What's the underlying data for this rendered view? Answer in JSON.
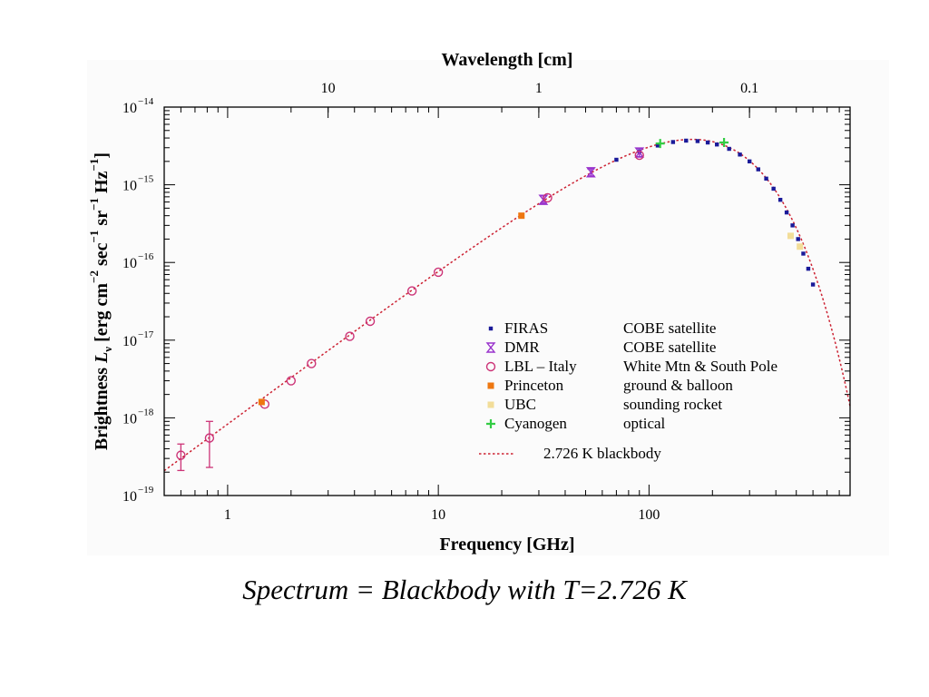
{
  "caption": "Spectrum = Blackbody with T=2.726 K",
  "chart_data": {
    "type": "scatter",
    "xscale": "log",
    "yscale": "log",
    "xlabel": "Frequency [GHz]",
    "x2label": "Wavelength [cm]",
    "ylabel_parts": [
      "Brightness ",
      "L",
      "ν",
      " [erg cm",
      "−2",
      " sec",
      "−1",
      " sr",
      "−1",
      " Hz",
      "−1",
      "]"
    ],
    "xlim": [
      0.5,
      900
    ],
    "ylim": [
      1e-19,
      1e-14
    ],
    "xticks": [
      {
        "value": 1,
        "label": "1"
      },
      {
        "value": 10,
        "label": "10"
      },
      {
        "value": 100,
        "label": "100"
      }
    ],
    "x2ticks": [
      {
        "value": 10,
        "label": "10"
      },
      {
        "value": 1,
        "label": "1"
      },
      {
        "value": 0.1,
        "label": "0.1"
      }
    ],
    "yticks": [
      {
        "value": 1e-14,
        "mantissa": "10",
        "exp": "−14"
      },
      {
        "value": 1e-15,
        "mantissa": "10",
        "exp": "−15"
      },
      {
        "value": 1e-16,
        "mantissa": "10",
        "exp": "−16"
      },
      {
        "value": 1e-17,
        "mantissa": "10",
        "exp": "−17"
      },
      {
        "value": 1e-18,
        "mantissa": "10",
        "exp": "−18"
      },
      {
        "value": 1e-19,
        "mantissa": "10",
        "exp": "−19"
      }
    ],
    "model": {
      "name": "2.726 K blackbody",
      "temperature_K": 2.726,
      "color": "#cc2233",
      "style": "dotted"
    },
    "legend_position": "center-right",
    "series": [
      {
        "name": "FIRAS",
        "source": "COBE satellite",
        "marker": "square-small",
        "color": "#1a1a99",
        "points": [
          {
            "x": 70,
            "y": 2.1e-15
          },
          {
            "x": 90,
            "y": 2.7e-15
          },
          {
            "x": 110,
            "y": 3.2e-15
          },
          {
            "x": 130,
            "y": 3.55e-15
          },
          {
            "x": 150,
            "y": 3.7e-15
          },
          {
            "x": 170,
            "y": 3.65e-15
          },
          {
            "x": 190,
            "y": 3.5e-15
          },
          {
            "x": 210,
            "y": 3.3e-15
          },
          {
            "x": 240,
            "y": 2.9e-15
          },
          {
            "x": 270,
            "y": 2.45e-15
          },
          {
            "x": 300,
            "y": 2e-15
          },
          {
            "x": 330,
            "y": 1.58e-15
          },
          {
            "x": 360,
            "y": 1.2e-15
          },
          {
            "x": 390,
            "y": 8.9e-16
          },
          {
            "x": 420,
            "y": 6.4e-16
          },
          {
            "x": 450,
            "y": 4.4e-16
          },
          {
            "x": 480,
            "y": 3e-16
          },
          {
            "x": 510,
            "y": 2e-16
          },
          {
            "x": 540,
            "y": 1.3e-16
          },
          {
            "x": 570,
            "y": 8.3e-17
          },
          {
            "x": 600,
            "y": 5.2e-17
          }
        ]
      },
      {
        "name": "DMR",
        "source": "COBE satellite",
        "marker": "hourglass",
        "color": "#9933cc",
        "points": [
          {
            "x": 31.5,
            "y": 6.4e-16,
            "ylo": 5.8e-16,
            "yhi": 7.2e-16
          },
          {
            "x": 53,
            "y": 1.45e-15,
            "ylo": 1.3e-15,
            "yhi": 1.6e-15
          },
          {
            "x": 90,
            "y": 2.6e-15,
            "ylo": 2.3e-15,
            "yhi": 2.95e-15
          }
        ]
      },
      {
        "name": "LBL – Italy",
        "source": "White Mtn & South Pole",
        "marker": "circle-open",
        "color": "#cc3377",
        "points": [
          {
            "x": 0.6,
            "y": 3.3e-19,
            "ylo": 2.1e-19,
            "yhi": 4.6e-19
          },
          {
            "x": 0.82,
            "y": 5.5e-19,
            "ylo": 2.3e-19,
            "yhi": 9e-19
          },
          {
            "x": 1.5,
            "y": 1.5e-18
          },
          {
            "x": 2.0,
            "y": 3e-18
          },
          {
            "x": 2.5,
            "y": 5e-18
          },
          {
            "x": 3.8,
            "y": 1.12e-17
          },
          {
            "x": 4.75,
            "y": 1.75e-17
          },
          {
            "x": 7.5,
            "y": 4.3e-17
          },
          {
            "x": 10,
            "y": 7.5e-17
          },
          {
            "x": 33,
            "y": 6.8e-16
          },
          {
            "x": 90,
            "y": 2.4e-15
          }
        ]
      },
      {
        "name": "Princeton",
        "source": "ground & balloon",
        "marker": "square-filled",
        "color": "#ee7711",
        "points": [
          {
            "x": 1.45,
            "y": 1.6e-18
          },
          {
            "x": 24.8,
            "y": 4e-16
          }
        ]
      },
      {
        "name": "UBC",
        "source": "sounding rocket",
        "marker": "square-filled",
        "color": "#f2dd99",
        "points": [
          {
            "x": 470,
            "y": 2.2e-16
          },
          {
            "x": 520,
            "y": 1.6e-16
          }
        ]
      },
      {
        "name": "Cyanogen",
        "source": "optical",
        "marker": "plus",
        "color": "#33cc44",
        "points": [
          {
            "x": 113,
            "y": 3.4e-15
          },
          {
            "x": 227,
            "y": 3.5e-15
          }
        ]
      }
    ]
  }
}
